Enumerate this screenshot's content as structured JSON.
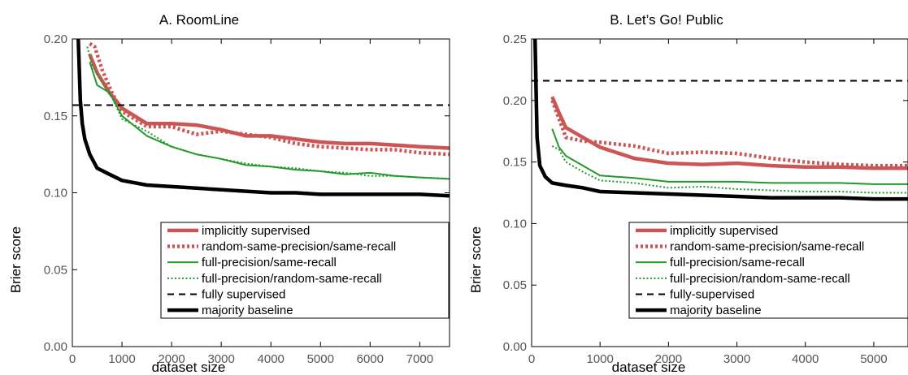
{
  "chart_data": [
    {
      "type": "line",
      "title": "A. RoomLine",
      "xlabel": "dataset size",
      "ylabel": "Brier score",
      "xlim": [
        0,
        7600
      ],
      "ylim": [
        0,
        0.2
      ],
      "xticks": [
        0,
        1000,
        2000,
        3000,
        4000,
        5000,
        6000,
        7000
      ],
      "yticks": [
        0.0,
        0.05,
        0.1,
        0.15,
        0.2
      ],
      "ytick_labels": [
        "0.00",
        "0.05",
        "0.10",
        "0.15",
        "0.20"
      ],
      "legend": "bottom-right",
      "grid": false,
      "series": [
        {
          "name": "implicitly supervised",
          "color": "#cc5555",
          "style": "solid-thick",
          "x": [
            350,
            500,
            750,
            1000,
            1500,
            2000,
            2500,
            3000,
            3500,
            4000,
            4500,
            5000,
            5500,
            6000,
            6500,
            7000,
            7600
          ],
          "y": [
            0.19,
            0.178,
            0.165,
            0.155,
            0.145,
            0.145,
            0.144,
            0.141,
            0.137,
            0.137,
            0.135,
            0.133,
            0.132,
            0.132,
            0.131,
            0.13,
            0.129
          ]
        },
        {
          "name": "random-same-precision/same-recall",
          "color": "#cc5555",
          "style": "dotted-thick",
          "x": [
            350,
            450,
            600,
            800,
            1000,
            1500,
            2000,
            2500,
            3000,
            3500,
            4000,
            4500,
            5000,
            5500,
            6000,
            6500,
            7000,
            7600
          ],
          "y": [
            0.197,
            0.195,
            0.18,
            0.165,
            0.153,
            0.143,
            0.143,
            0.138,
            0.14,
            0.138,
            0.136,
            0.132,
            0.13,
            0.129,
            0.128,
            0.128,
            0.126,
            0.125
          ]
        },
        {
          "name": "full-precision/same-recall",
          "color": "#22992a",
          "style": "solid",
          "x": [
            350,
            500,
            750,
            1000,
            1500,
            2000,
            2500,
            3000,
            3500,
            4000,
            4500,
            5000,
            5500,
            6000,
            6500,
            7000,
            7600
          ],
          "y": [
            0.185,
            0.17,
            0.165,
            0.15,
            0.137,
            0.13,
            0.125,
            0.122,
            0.118,
            0.117,
            0.115,
            0.114,
            0.112,
            0.113,
            0.111,
            0.11,
            0.109
          ]
        },
        {
          "name": "full-precision/random-same-recall",
          "color": "#22992a",
          "style": "dotted",
          "x": [
            300,
            400,
            600,
            800,
            1000,
            1500,
            2000,
            2500,
            3000,
            3500,
            4000,
            4500,
            5000,
            5500,
            6000,
            6500,
            7000,
            7600
          ],
          "y": [
            0.195,
            0.183,
            0.172,
            0.162,
            0.148,
            0.14,
            0.13,
            0.125,
            0.122,
            0.119,
            0.117,
            0.116,
            0.114,
            0.113,
            0.111,
            0.111,
            0.11,
            0.109
          ]
        },
        {
          "name": "fully supervised",
          "color": "#000000",
          "style": "dashed",
          "x": [
            0,
            7600
          ],
          "y": [
            0.157,
            0.157
          ]
        },
        {
          "name": "majority baseline",
          "color": "#000000",
          "style": "solid-thick",
          "x": [
            120,
            160,
            200,
            250,
            350,
            500,
            750,
            1000,
            1500,
            2000,
            2500,
            3000,
            3500,
            4000,
            4500,
            5000,
            5500,
            6000,
            6500,
            7000,
            7600
          ],
          "y": [
            0.2,
            0.16,
            0.145,
            0.135,
            0.125,
            0.116,
            0.112,
            0.108,
            0.105,
            0.104,
            0.103,
            0.102,
            0.101,
            0.1,
            0.1,
            0.099,
            0.099,
            0.099,
            0.099,
            0.099,
            0.098
          ]
        }
      ]
    },
    {
      "type": "line",
      "title": "B. Let’s Go! Public",
      "xlabel": "dataset size",
      "ylabel": "Brier score",
      "xlim": [
        0,
        5500
      ],
      "ylim": [
        0,
        0.25
      ],
      "xticks": [
        0,
        1000,
        2000,
        3000,
        4000,
        5000
      ],
      "yticks": [
        0.0,
        0.05,
        0.1,
        0.15,
        0.2,
        0.25
      ],
      "ytick_labels": [
        "0.00",
        "0.05",
        "0.10",
        "0.15",
        "0.20",
        "0.25"
      ],
      "legend": "bottom-right",
      "grid": false,
      "series": [
        {
          "name": "implicitly supervised",
          "color": "#cc5555",
          "style": "solid-thick",
          "x": [
            300,
            400,
            500,
            750,
            1000,
            1500,
            2000,
            2500,
            3000,
            3500,
            4000,
            4500,
            5000,
            5500
          ],
          "y": [
            0.203,
            0.19,
            0.178,
            0.17,
            0.162,
            0.153,
            0.149,
            0.148,
            0.149,
            0.147,
            0.146,
            0.146,
            0.145,
            0.145
          ]
        },
        {
          "name": "random-same-precision/same-recall",
          "color": "#cc5555",
          "style": "dotted-thick",
          "x": [
            300,
            400,
            500,
            750,
            1000,
            1500,
            2000,
            2500,
            3000,
            3500,
            4000,
            4500,
            5000,
            5500
          ],
          "y": [
            0.2,
            0.185,
            0.17,
            0.167,
            0.166,
            0.163,
            0.157,
            0.158,
            0.157,
            0.153,
            0.15,
            0.148,
            0.147,
            0.147
          ]
        },
        {
          "name": "full-precision/same-recall",
          "color": "#22992a",
          "style": "solid",
          "x": [
            300,
            400,
            500,
            750,
            1000,
            1500,
            2000,
            2500,
            3000,
            3500,
            4000,
            4500,
            5000,
            5500
          ],
          "y": [
            0.177,
            0.162,
            0.155,
            0.147,
            0.139,
            0.137,
            0.134,
            0.134,
            0.134,
            0.133,
            0.133,
            0.133,
            0.132,
            0.132
          ]
        },
        {
          "name": "full-precision/random-same-recall",
          "color": "#22992a",
          "style": "dotted",
          "x": [
            300,
            400,
            500,
            750,
            1000,
            1500,
            2000,
            2500,
            3000,
            3500,
            4000,
            4500,
            5000,
            5500
          ],
          "y": [
            0.163,
            0.16,
            0.15,
            0.142,
            0.135,
            0.133,
            0.129,
            0.13,
            0.128,
            0.127,
            0.126,
            0.126,
            0.125,
            0.125
          ]
        },
        {
          "name": "fully-supervised",
          "color": "#000000",
          "style": "dashed",
          "x": [
            0,
            5500
          ],
          "y": [
            0.216,
            0.216
          ]
        },
        {
          "name": "majority baseline",
          "color": "#000000",
          "style": "solid-thick",
          "x": [
            50,
            80,
            120,
            200,
            300,
            500,
            750,
            1000,
            1500,
            2000,
            2500,
            3000,
            3500,
            4000,
            4500,
            5000,
            5500
          ],
          "y": [
            0.25,
            0.17,
            0.147,
            0.138,
            0.133,
            0.131,
            0.129,
            0.126,
            0.125,
            0.124,
            0.123,
            0.122,
            0.121,
            0.121,
            0.121,
            0.12,
            0.12
          ]
        }
      ]
    }
  ]
}
